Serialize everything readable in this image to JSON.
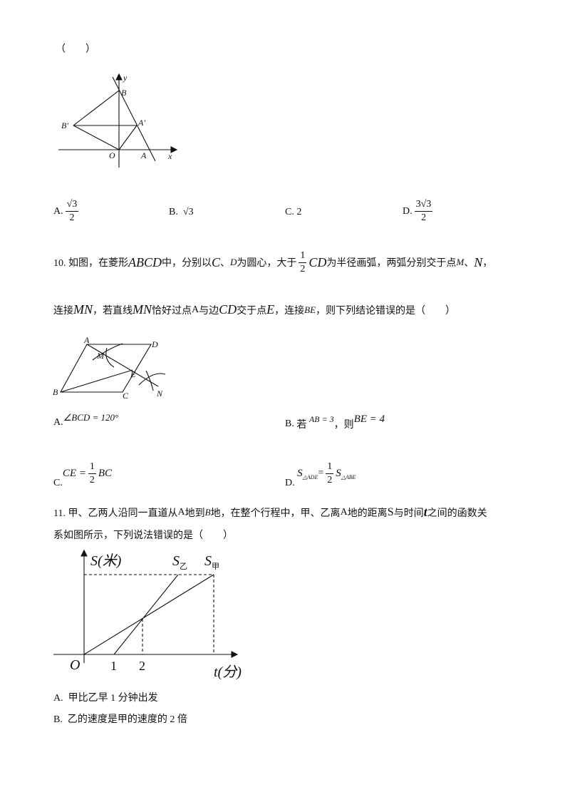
{
  "intro": "（　　）",
  "q9": {
    "figure_labels": [
      "y",
      "B",
      "B'",
      "A'",
      "O",
      "A",
      "x"
    ],
    "options": [
      {
        "letter": "A.",
        "numerator": "√3",
        "denominator": "2"
      },
      {
        "letter": "B.",
        "text": "√3"
      },
      {
        "letter": "C.",
        "text": "2"
      },
      {
        "letter": "D.",
        "numerator": "3√3",
        "denominator": "2"
      }
    ]
  },
  "q10": {
    "line1": [
      "10. 如图，在菱形",
      "ABCD",
      "中，分别以",
      "C",
      "、",
      "D",
      "为圆心，大于",
      "1",
      "2",
      "CD",
      "为半径画弧，两弧分别交于点",
      "M",
      "、",
      "N",
      "，"
    ],
    "line2": [
      "连接",
      "MN",
      "，若直线",
      "MN",
      "恰好过点",
      "A",
      "与边",
      "CD",
      "交于点",
      "E",
      "，连接",
      "BE",
      "，则下列结论错误的是（　　）"
    ],
    "figure_labels": [
      "A",
      "D",
      "M",
      "E",
      "B",
      "C",
      "N"
    ],
    "options": [
      {
        "letter": "A.",
        "parts": [
          "∠BCD = 120°"
        ]
      },
      {
        "letter": "B.",
        "parts": [
          "若",
          "AB = 3",
          "，则",
          "BE = 4"
        ]
      },
      {
        "letter": "C.",
        "parts": [
          "CE =",
          "1",
          "2",
          "BC"
        ]
      },
      {
        "letter": "D.",
        "parts": [
          "S",
          "△ADE",
          "=",
          "1",
          "2",
          "S",
          "△ABE"
        ]
      }
    ]
  },
  "q11": {
    "line1": [
      "11. 甲、乙两人沿同一直道从",
      "A",
      "地到",
      "B",
      "地，在整个行程中，甲、乙离",
      "A",
      "地的距离",
      "S",
      "与时间",
      "t",
      "之间的函数关"
    ],
    "line2": "系如图所示，下列说法错误的是（　　）",
    "figure_labels": [
      "S(米)",
      "S",
      "乙",
      "S",
      "甲",
      "O",
      "1",
      "2",
      "t(分)"
    ],
    "options": [
      {
        "letter": "A.",
        "text": "甲比乙早 1 分钟出发"
      },
      {
        "letter": "B.",
        "text": "乙的速度是甲的速度的 2 倍"
      }
    ]
  }
}
